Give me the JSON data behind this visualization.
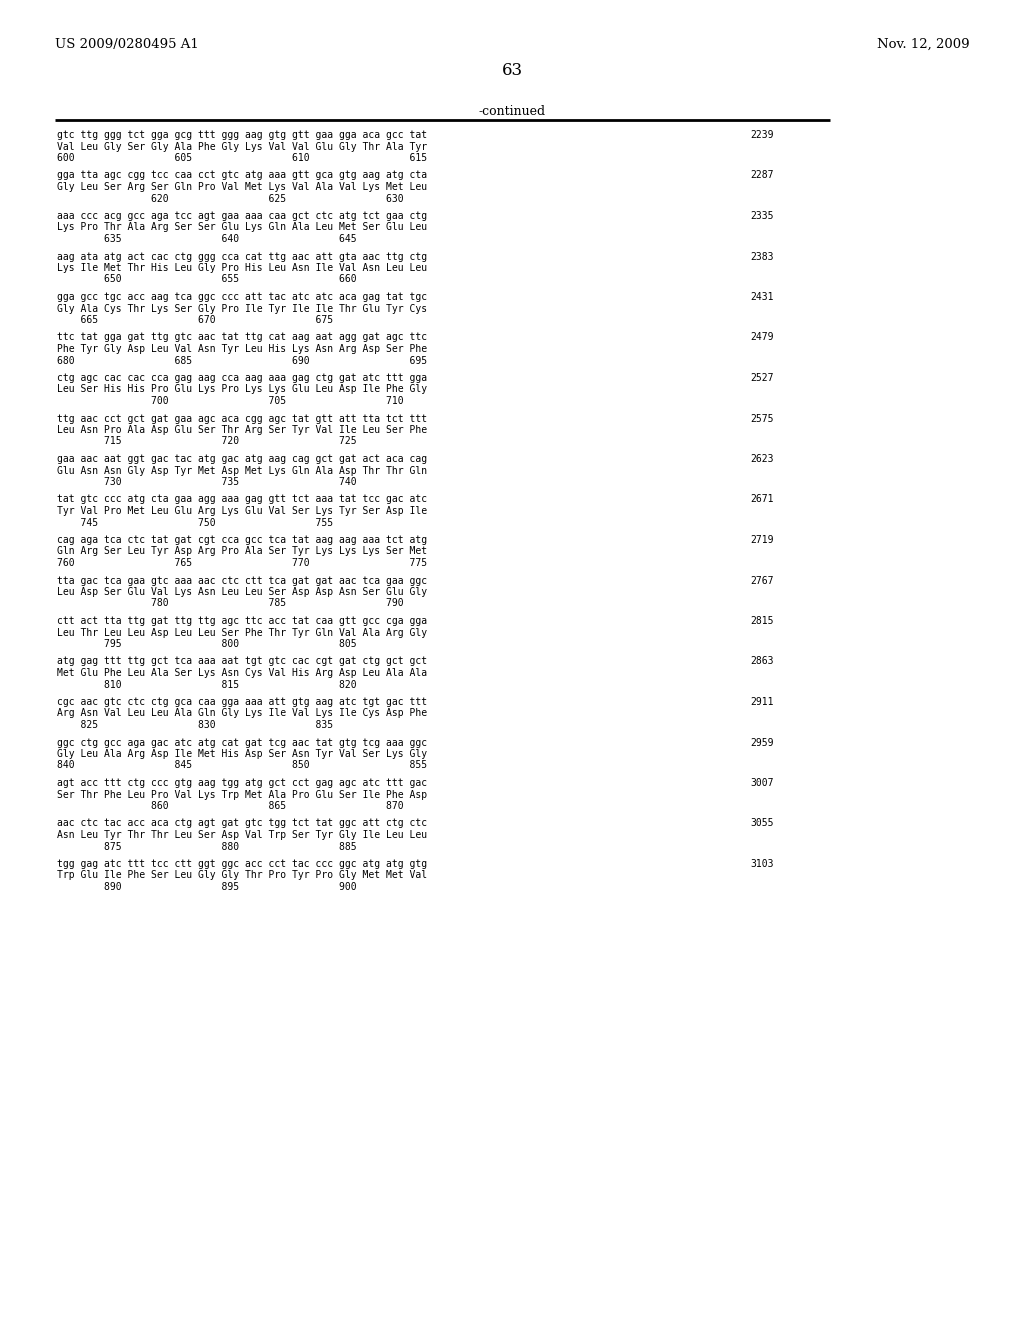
{
  "header_left": "US 2009/0280495 A1",
  "header_right": "Nov. 12, 2009",
  "page_number": "63",
  "continued_label": "-continued",
  "background_color": "#ffffff",
  "text_color": "#000000",
  "blocks": [
    {
      "dna": "gtc ttg ggg tct gga gcg ttt ggg aag gtg gtt gaa gga aca gcc tat",
      "aa": "Val Leu Gly Ser Gly Ala Phe Gly Lys Val Val Glu Gly Thr Ala Tyr",
      "nums": "600                 605                 610                 615",
      "num_right": "2239"
    },
    {
      "dna": "gga tta agc cgg tcc caa cct gtc atg aaa gtt gca gtg aag atg cta",
      "aa": "Gly Leu Ser Arg Ser Gln Pro Val Met Lys Val Ala Val Lys Met Leu",
      "nums": "                620                 625                 630",
      "num_right": "2287"
    },
    {
      "dna": "aaa ccc acg gcc aga tcc agt gaa aaa caa gct ctc atg tct gaa ctg",
      "aa": "Lys Pro Thr Ala Arg Ser Ser Glu Lys Gln Ala Leu Met Ser Glu Leu",
      "nums": "        635                 640                 645",
      "num_right": "2335"
    },
    {
      "dna": "aag ata atg act cac ctg ggg cca cat ttg aac att gta aac ttg ctg",
      "aa": "Lys Ile Met Thr His Leu Gly Pro His Leu Asn Ile Val Asn Leu Leu",
      "nums": "        650                 655                 660",
      "num_right": "2383"
    },
    {
      "dna": "gga gcc tgc acc aag tca ggc ccc att tac atc atc aca gag tat tgc",
      "aa": "Gly Ala Cys Thr Lys Ser Gly Pro Ile Tyr Ile Ile Thr Glu Tyr Cys",
      "nums": "    665                 670                 675",
      "num_right": "2431"
    },
    {
      "dna": "ttc tat gga gat ttg gtc aac tat ttg cat aag aat agg gat agc ttc",
      "aa": "Phe Tyr Gly Asp Leu Val Asn Tyr Leu His Lys Asn Arg Asp Ser Phe",
      "nums": "680                 685                 690                 695",
      "num_right": "2479"
    },
    {
      "dna": "ctg agc cac cac cca gag aag cca aag aaa gag ctg gat atc ttt gga",
      "aa": "Leu Ser His His Pro Glu Lys Pro Lys Lys Glu Leu Asp Ile Phe Gly",
      "nums": "                700                 705                 710",
      "num_right": "2527"
    },
    {
      "dna": "ttg aac cct gct gat gaa agc aca cgg agc tat gtt att tta tct ttt",
      "aa": "Leu Asn Pro Ala Asp Glu Ser Thr Arg Ser Tyr Val Ile Leu Ser Phe",
      "nums": "        715                 720                 725",
      "num_right": "2575"
    },
    {
      "dna": "gaa aac aat ggt gac tac atg gac atg aag cag gct gat act aca cag",
      "aa": "Glu Asn Asn Gly Asp Tyr Met Asp Met Lys Gln Ala Asp Thr Thr Gln",
      "nums": "        730                 735                 740",
      "num_right": "2623"
    },
    {
      "dna": "tat gtc ccc atg cta gaa agg aaa gag gtt tct aaa tat tcc gac atc",
      "aa": "Tyr Val Pro Met Leu Glu Arg Lys Glu Val Ser Lys Tyr Ser Asp Ile",
      "nums": "    745                 750                 755",
      "num_right": "2671"
    },
    {
      "dna": "cag aga tca ctc tat gat cgt cca gcc tca tat aag aag aaa tct atg",
      "aa": "Gln Arg Ser Leu Tyr Asp Arg Pro Ala Ser Tyr Lys Lys Lys Ser Met",
      "nums": "760                 765                 770                 775",
      "num_right": "2719"
    },
    {
      "dna": "tta gac tca gaa gtc aaa aac ctc ctt tca gat gat aac tca gaa ggc",
      "aa": "Leu Asp Ser Glu Val Lys Asn Leu Leu Ser Asp Asp Asn Ser Glu Gly",
      "nums": "                780                 785                 790",
      "num_right": "2767"
    },
    {
      "dna": "ctt act tta ttg gat ttg ttg agc ttc acc tat caa gtt gcc cga gga",
      "aa": "Leu Thr Leu Leu Asp Leu Leu Ser Phe Thr Tyr Gln Val Ala Arg Gly",
      "nums": "        795                 800                 805",
      "num_right": "2815"
    },
    {
      "dna": "atg gag ttt ttg gct tca aaa aat tgt gtc cac cgt gat ctg gct gct",
      "aa": "Met Glu Phe Leu Ala Ser Lys Asn Cys Val His Arg Asp Leu Ala Ala",
      "nums": "        810                 815                 820",
      "num_right": "2863"
    },
    {
      "dna": "cgc aac gtc ctc ctg gca caa gga aaa att gtg aag atc tgt gac ttt",
      "aa": "Arg Asn Val Leu Leu Ala Gln Gly Lys Ile Val Lys Ile Cys Asp Phe",
      "nums": "    825                 830                 835",
      "num_right": "2911"
    },
    {
      "dna": "ggc ctg gcc aga gac atc atg cat gat tcg aac tat gtg tcg aaa ggc",
      "aa": "Gly Leu Ala Arg Asp Ile Met His Asp Ser Asn Tyr Val Ser Lys Gly",
      "nums": "840                 845                 850                 855",
      "num_right": "2959"
    },
    {
      "dna": "agt acc ttt ctg ccc gtg aag tgg atg gct cct gag agc atc ttt gac",
      "aa": "Ser Thr Phe Leu Pro Val Lys Trp Met Ala Pro Glu Ser Ile Phe Asp",
      "nums": "                860                 865                 870",
      "num_right": "3007"
    },
    {
      "dna": "aac ctc tac acc aca ctg agt gat gtc tgg tct tat ggc att ctg ctc",
      "aa": "Asn Leu Tyr Thr Thr Leu Ser Asp Val Trp Ser Tyr Gly Ile Leu Leu",
      "nums": "        875                 880                 885",
      "num_right": "3055"
    },
    {
      "dna": "tgg gag atc ttt tcc ctt ggt ggc acc cct tac ccc ggc atg atg gtg",
      "aa": "Trp Glu Ile Phe Ser Leu Gly Gly Thr Pro Tyr Pro Gly Met Met Val",
      "nums": "        890                 895                 900",
      "num_right": "3103"
    }
  ]
}
